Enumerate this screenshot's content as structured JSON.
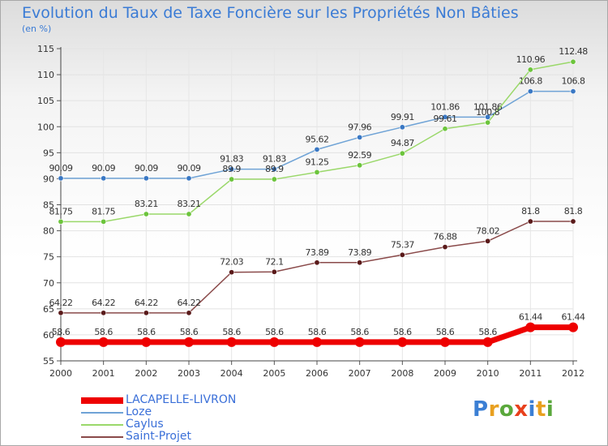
{
  "title": "Evolution du Taux de Taxe Foncière sur les Propriétés Non Bâties",
  "subtitle": "(en %)",
  "logo": {
    "text": "Proxiti",
    "letter_colors": [
      "#3b7fd4",
      "#e8a020",
      "#5aa83c",
      "#e8401c",
      "#3b7fd4",
      "#e8a020",
      "#5aa83c"
    ]
  },
  "chart_data": {
    "type": "line",
    "title": "Evolution du Taux de Taxe Foncière sur les Propriétés Non Bâties",
    "ylabel": "(en %)",
    "xlabel": "",
    "x": [
      "2000",
      "2001",
      "2002",
      "2003",
      "2004",
      "2005",
      "2006",
      "2007",
      "2008",
      "2009",
      "2010",
      "2011",
      "2012"
    ],
    "ylim": [
      55,
      115
    ],
    "yticks": [
      55,
      60,
      65,
      70,
      75,
      80,
      85,
      90,
      95,
      100,
      105,
      110,
      115
    ],
    "grid": true,
    "legend_position": "bottom-left",
    "series": [
      {
        "name": "LACAPELLE-LIVRON",
        "color": "#ee0000",
        "width": 7,
        "values": [
          58.6,
          58.6,
          58.6,
          58.6,
          58.6,
          58.6,
          58.6,
          58.6,
          58.6,
          58.6,
          58.6,
          61.44,
          61.44
        ],
        "labels": [
          "58.6",
          "58.6",
          "58.6",
          "58.6",
          "58.6",
          "58.6",
          "58.6",
          "58.6",
          "58.6",
          "58.6",
          "58.6",
          "61.44",
          "61.44"
        ]
      },
      {
        "name": "Loze",
        "color": "#6fa3d6",
        "marker": "#3a78c4",
        "width": 1.5,
        "values": [
          90.09,
          90.09,
          90.09,
          90.09,
          91.83,
          91.83,
          95.62,
          97.96,
          99.91,
          101.86,
          101.86,
          106.8,
          106.8
        ],
        "labels": [
          "90.09",
          "90.09",
          "90.09",
          "90.09",
          "91.83",
          "91.83",
          "95.62",
          "97.96",
          "99.91",
          "101.86",
          "101.86",
          "106.8",
          "106.8"
        ]
      },
      {
        "name": "Caylus",
        "color": "#9ad86a",
        "marker": "#6cc43c",
        "width": 1.5,
        "values": [
          81.75,
          81.75,
          83.21,
          83.21,
          89.9,
          89.9,
          91.25,
          92.59,
          94.87,
          99.61,
          100.8,
          110.96,
          112.48
        ],
        "labels": [
          "81.75",
          "81.75",
          "83.21",
          "83.21",
          "89.9",
          "89.9",
          "91.25",
          "92.59",
          "94.87",
          "99.61",
          "100.8",
          "110.96",
          "112.48"
        ]
      },
      {
        "name": "Saint-Projet",
        "color": "#8a4a4a",
        "marker": "#5a1a1a",
        "width": 1.5,
        "values": [
          64.22,
          64.22,
          64.22,
          64.22,
          72.03,
          72.1,
          73.89,
          73.89,
          75.37,
          76.88,
          78.02,
          81.8,
          81.8
        ],
        "labels": [
          "64.22",
          "64.22",
          "64.22",
          "64.22",
          "72.03",
          "72.1",
          "73.89",
          "73.89",
          "75.37",
          "76.88",
          "78.02",
          "81.8",
          "81.8"
        ]
      }
    ]
  }
}
